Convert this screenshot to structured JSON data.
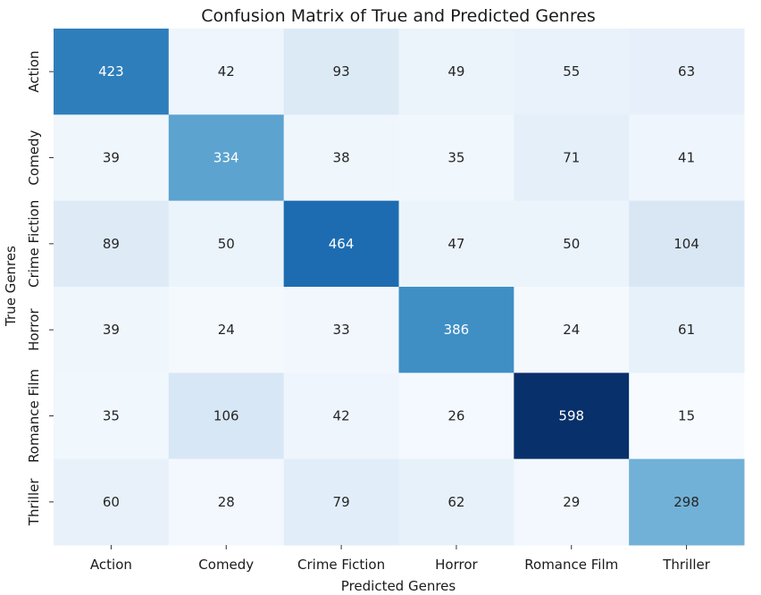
{
  "chart_data": {
    "type": "heatmap",
    "title": "Confusion Matrix of True and Predicted Genres",
    "xlabel": "Predicted Genres",
    "ylabel": "True Genres",
    "x_categories": [
      "Action",
      "Comedy",
      "Crime Fiction",
      "Horror",
      "Romance Film",
      "Thriller"
    ],
    "y_categories": [
      "Action",
      "Comedy",
      "Crime Fiction",
      "Horror",
      "Romance Film",
      "Thriller"
    ],
    "values": [
      [
        423,
        42,
        93,
        49,
        55,
        63
      ],
      [
        39,
        334,
        38,
        35,
        71,
        41
      ],
      [
        89,
        50,
        464,
        47,
        50,
        104
      ],
      [
        39,
        24,
        33,
        386,
        24,
        61
      ],
      [
        35,
        106,
        42,
        26,
        598,
        15
      ],
      [
        60,
        28,
        79,
        62,
        29,
        298
      ]
    ],
    "colormap": "Blues",
    "color_range": [
      15,
      598
    ],
    "annotations": true,
    "colorbar": false,
    "grid": false
  }
}
